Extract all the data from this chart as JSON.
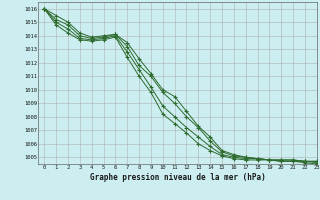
{
  "title": "Graphe pression niveau de la mer (hPa)",
  "bg_color": "#cceef0",
  "grid_color": "#b0b0b0",
  "line_color": "#2d6a2d",
  "xlim": [
    -0.5,
    23
  ],
  "ylim": [
    1004.5,
    1016.5
  ],
  "xticks": [
    0,
    1,
    2,
    3,
    4,
    5,
    6,
    7,
    8,
    9,
    10,
    11,
    12,
    13,
    14,
    15,
    16,
    17,
    18,
    19,
    20,
    21,
    22,
    23
  ],
  "yticks": [
    1005,
    1006,
    1007,
    1008,
    1009,
    1010,
    1011,
    1012,
    1013,
    1014,
    1015,
    1016
  ],
  "lines": [
    [
      1016.0,
      1015.5,
      1015.0,
      1014.2,
      1013.9,
      1014.0,
      1014.1,
      1013.5,
      1012.3,
      1011.2,
      1010.0,
      1009.5,
      1008.4,
      1007.3,
      1006.5,
      1005.5,
      1005.2,
      1005.0,
      1004.9,
      1004.8,
      1004.8,
      1004.8,
      1004.7,
      1004.7
    ],
    [
      1016.0,
      1015.2,
      1014.8,
      1014.0,
      1013.8,
      1013.9,
      1014.1,
      1013.2,
      1011.8,
      1011.0,
      1009.8,
      1009.0,
      1008.0,
      1007.2,
      1006.2,
      1005.4,
      1005.1,
      1005.0,
      1004.9,
      1004.8,
      1004.8,
      1004.8,
      1004.7,
      1004.7
    ],
    [
      1016.0,
      1015.0,
      1014.5,
      1013.8,
      1013.7,
      1013.8,
      1014.0,
      1012.8,
      1011.5,
      1010.2,
      1008.8,
      1008.0,
      1007.2,
      1006.5,
      1005.8,
      1005.2,
      1005.0,
      1004.9,
      1004.9,
      1004.8,
      1004.7,
      1004.7,
      1004.7,
      1004.6
    ],
    [
      1016.0,
      1014.8,
      1014.2,
      1013.7,
      1013.6,
      1013.7,
      1013.9,
      1012.4,
      1011.0,
      1009.8,
      1008.2,
      1007.5,
      1006.8,
      1006.0,
      1005.5,
      1005.1,
      1004.9,
      1004.8,
      1004.8,
      1004.8,
      1004.7,
      1004.7,
      1004.6,
      1004.5
    ]
  ]
}
